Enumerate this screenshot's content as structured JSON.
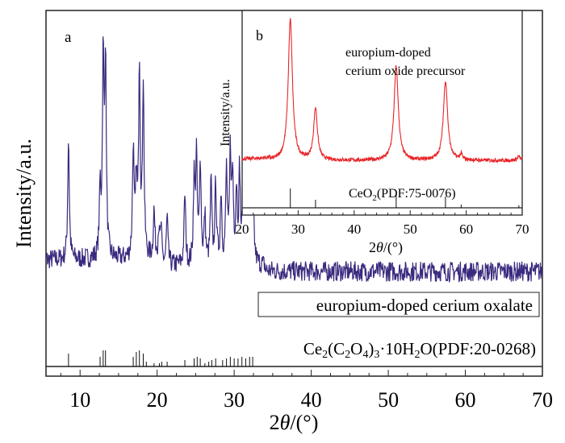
{
  "chart_data": [
    {
      "id": "a",
      "type": "line",
      "panel_label": "a",
      "title": "",
      "xlabel_prefix": "2",
      "xlabel_theta": "θ",
      "xlabel_suffix": "/(°)",
      "ylabel": "Intensity/a.u.",
      "xlim": [
        5,
        70
      ],
      "ylim": [
        0,
        100
      ],
      "xticks_major": [
        10,
        20,
        30,
        40,
        50,
        60,
        70
      ],
      "xticks_minor_step": 2.5,
      "grid": false,
      "series": [
        {
          "name": "europium-doped cerium oxalate",
          "color": "#3b2a7e",
          "baseline": 26,
          "noise": 3,
          "peaks": [
            {
              "x": 8.5,
              "h": 62
            },
            {
              "x": 12.6,
              "h": 45
            },
            {
              "x": 13.0,
              "h": 83
            },
            {
              "x": 13.3,
              "h": 83
            },
            {
              "x": 16.9,
              "h": 58
            },
            {
              "x": 17.3,
              "h": 47
            },
            {
              "x": 17.7,
              "h": 83
            },
            {
              "x": 18.2,
              "h": 77
            },
            {
              "x": 19.6,
              "h": 40
            },
            {
              "x": 20.2,
              "h": 36
            },
            {
              "x": 20.5,
              "h": 36
            },
            {
              "x": 21.3,
              "h": 40
            },
            {
              "x": 23.6,
              "h": 47
            },
            {
              "x": 24.8,
              "h": 50
            },
            {
              "x": 25.1,
              "h": 57
            },
            {
              "x": 25.6,
              "h": 57
            },
            {
              "x": 26.2,
              "h": 40
            },
            {
              "x": 27.0,
              "h": 50
            },
            {
              "x": 27.6,
              "h": 50
            },
            {
              "x": 28.3,
              "h": 47
            },
            {
              "x": 29.0,
              "h": 53
            },
            {
              "x": 29.5,
              "h": 58
            },
            {
              "x": 29.8,
              "h": 50
            },
            {
              "x": 30.3,
              "h": 47
            },
            {
              "x": 30.7,
              "h": 52
            },
            {
              "x": 31.2,
              "h": 52
            },
            {
              "x": 31.6,
              "h": 57
            },
            {
              "x": 32.0,
              "h": 57
            },
            {
              "x": 32.4,
              "h": 58
            }
          ]
        }
      ],
      "reference": {
        "label_formula": [
          "Ce",
          "2",
          "(C",
          "2",
          "O",
          "4",
          ")",
          "3",
          "·10H",
          "2",
          "O(PDF:20-0268)"
        ],
        "lines": [
          {
            "x": 8.5,
            "h": 8
          },
          {
            "x": 12.6,
            "h": 6
          },
          {
            "x": 13.0,
            "h": 10
          },
          {
            "x": 13.3,
            "h": 10
          },
          {
            "x": 16.9,
            "h": 6
          },
          {
            "x": 17.3,
            "h": 9
          },
          {
            "x": 17.7,
            "h": 10
          },
          {
            "x": 18.2,
            "h": 8
          },
          {
            "x": 18.6,
            "h": 3
          },
          {
            "x": 19.6,
            "h": 2
          },
          {
            "x": 20.3,
            "h": 2
          },
          {
            "x": 20.6,
            "h": 3
          },
          {
            "x": 21.3,
            "h": 3
          },
          {
            "x": 23.6,
            "h": 4
          },
          {
            "x": 24.8,
            "h": 5
          },
          {
            "x": 25.2,
            "h": 6
          },
          {
            "x": 25.6,
            "h": 5
          },
          {
            "x": 26.2,
            "h": 2
          },
          {
            "x": 26.7,
            "h": 3
          },
          {
            "x": 27.1,
            "h": 4
          },
          {
            "x": 27.6,
            "h": 5
          },
          {
            "x": 28.5,
            "h": 4
          },
          {
            "x": 29.0,
            "h": 5
          },
          {
            "x": 29.5,
            "h": 6
          },
          {
            "x": 30.0,
            "h": 5
          },
          {
            "x": 30.5,
            "h": 5
          },
          {
            "x": 31.0,
            "h": 6
          },
          {
            "x": 31.5,
            "h": 5
          },
          {
            "x": 32.0,
            "h": 6
          },
          {
            "x": 32.4,
            "h": 6
          }
        ]
      },
      "legend": {
        "text": "europium-doped cerium oxalate",
        "placement": "center-right"
      }
    },
    {
      "id": "b",
      "type": "line",
      "panel_label": "b",
      "title": "",
      "xlabel_prefix": "2",
      "xlabel_theta": "θ",
      "xlabel_suffix": "/(°)",
      "ylabel": "Intensity/a.u.",
      "xlim": [
        20,
        70
      ],
      "ylim": [
        0,
        100
      ],
      "xticks_major": [
        20,
        30,
        40,
        50,
        60,
        70
      ],
      "xticks_minor_step": 2,
      "grid": false,
      "series": [
        {
          "name": "europium-doped cerium oxide precursor",
          "color": "#e8262a",
          "baseline": 22,
          "noise": 1,
          "peaks": [
            {
              "x": 28.6,
              "h": 98,
              "w": 0.45
            },
            {
              "x": 33.1,
              "h": 50,
              "w": 0.4
            },
            {
              "x": 47.5,
              "h": 73,
              "w": 0.45
            },
            {
              "x": 56.3,
              "h": 65,
              "w": 0.45
            },
            {
              "x": 59.1,
              "h": 25,
              "w": 0.25
            },
            {
              "x": 69.4,
              "h": 24,
              "w": 0.35
            }
          ]
        }
      ],
      "annotation": [
        "europium-doped",
        "cerium oxide precursor"
      ],
      "reference": {
        "label_formula": [
          "CeO",
          "2",
          "(PDF:75-0076)"
        ],
        "lines": [
          {
            "x": 28.6,
            "h": 12
          },
          {
            "x": 33.1,
            "h": 5
          },
          {
            "x": 47.5,
            "h": 8
          },
          {
            "x": 56.3,
            "h": 7
          },
          {
            "x": 59.1,
            "h": 2
          },
          {
            "x": 69.4,
            "h": 1.5
          }
        ]
      }
    }
  ]
}
